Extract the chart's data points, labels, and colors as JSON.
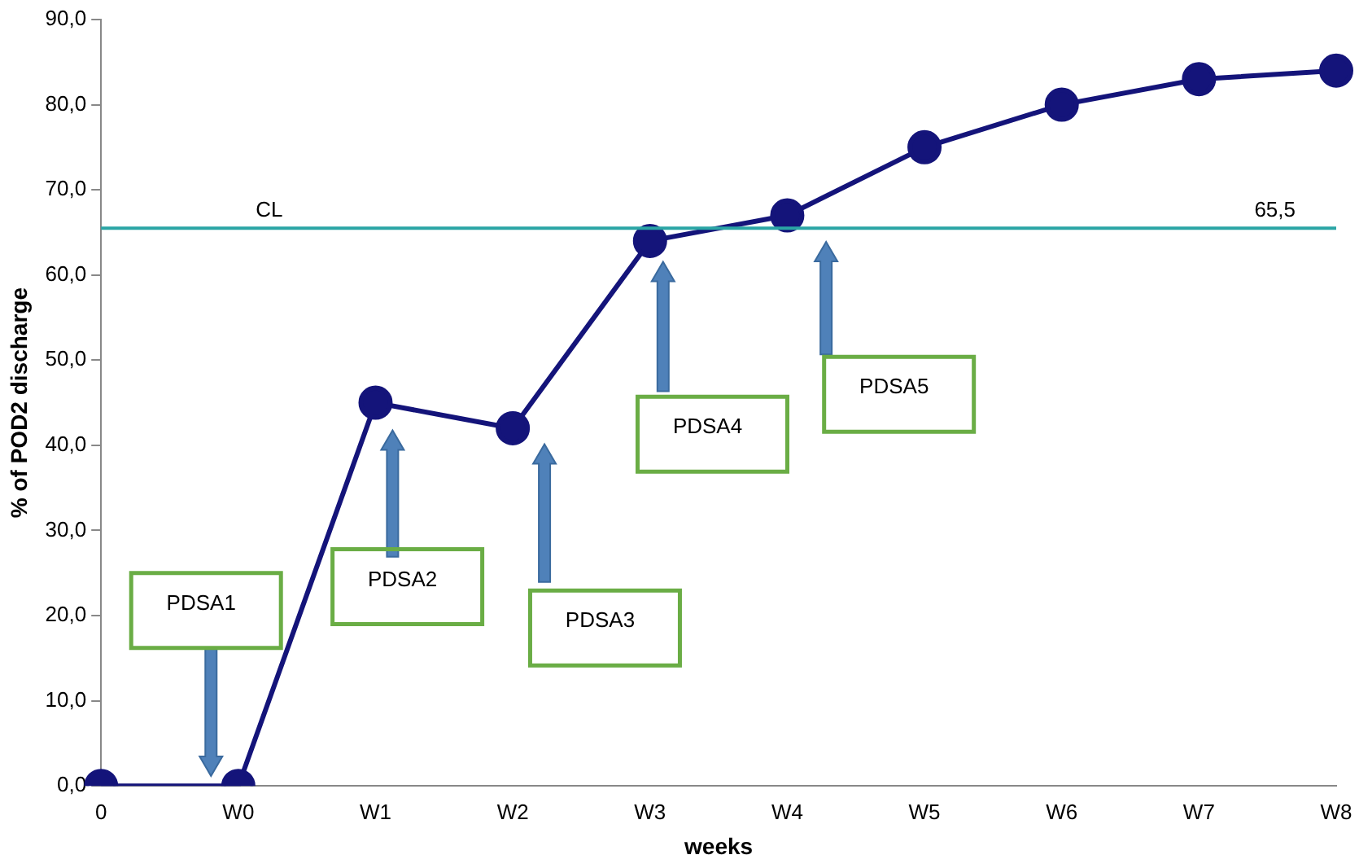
{
  "chart_data": {
    "type": "line",
    "xlabel": "weeks",
    "ylabel": "% of POD2 discharge",
    "categories": [
      "0",
      "W0",
      "W1",
      "W2",
      "W3",
      "W4",
      "W5",
      "W6",
      "W7",
      "W8"
    ],
    "series": [
      {
        "color": "#14147a",
        "values": [
          0,
          0,
          45,
          42,
          64,
          67,
          75,
          80,
          83,
          84
        ]
      }
    ],
    "ylim": [
      0,
      90
    ],
    "yticks": [
      {
        "value": 0,
        "label": "0,0"
      },
      {
        "value": 10,
        "label": "10,0"
      },
      {
        "value": 20,
        "label": "20,0"
      },
      {
        "value": 30,
        "label": "30,0"
      },
      {
        "value": 40,
        "label": "40,0"
      },
      {
        "value": 50,
        "label": "50,0"
      },
      {
        "value": 60,
        "label": "60,0"
      },
      {
        "value": 70,
        "label": "70,0"
      },
      {
        "value": 80,
        "label": "80,0"
      },
      {
        "value": 90,
        "label": "90,0"
      }
    ],
    "ref_lines": [
      {
        "axis": "y",
        "value": 65.5,
        "label": "CL",
        "color": "#2aa5a5"
      }
    ],
    "annotations": [
      {
        "text": "65,5",
        "x": "W8",
        "y": 65.5
      },
      "PDSA1",
      "PDSA2",
      "PDSA3",
      "PDSA4",
      "PDSA5"
    ],
    "marker": "circle",
    "line_style": "solid",
    "grid": false,
    "legend": false
  }
}
